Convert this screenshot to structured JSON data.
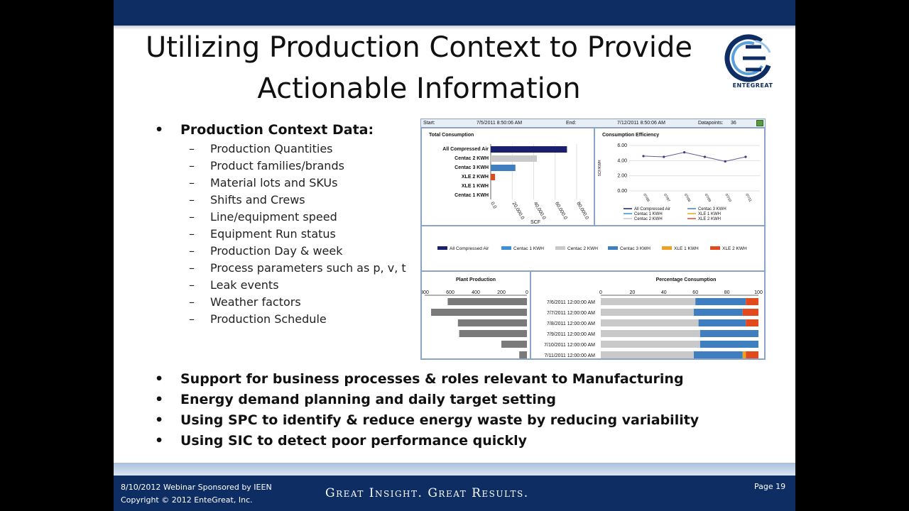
{
  "slide": {
    "title_line1": "Utilizing Production Context to Provide",
    "title_line2": "Actionable Information",
    "logo_text": "ENTEGREAT",
    "top_bullet": {
      "label": "Production Context Data:",
      "items": [
        "Production Quantities",
        "Product families/brands",
        "Material lots and SKUs",
        "Shifts and Crews",
        "Line/equipment speed",
        "Equipment Run status",
        "Production Day & week",
        "Process parameters such as p, v, t",
        "Leak events",
        "Weather factors",
        "Production Schedule"
      ]
    },
    "bottom_bullets": [
      "Support for business processes & roles relevant to Manufacturing",
      "Energy demand planning and daily target setting",
      "Using SPC to identify & reduce energy waste by reducing variability",
      "Using SIC to detect poor performance quickly"
    ]
  },
  "dashboard": {
    "start_label": "Start:",
    "start_value": "7/5/2011 8:50:06 AM",
    "end_label": "End:",
    "end_value": "7/12/2011 8:50:06 AM",
    "datapoints_label": "Datapoints:",
    "datapoints_value": "36"
  },
  "footer": {
    "date_line": "8/10/2012  Webinar Sponsored by IEEN",
    "copyright": "Copyright © 2012  EnteGreat, Inc.",
    "tagline": "Great Insight. Great Results.",
    "page": "Page 19"
  },
  "colors": {
    "all_compressed_air": "#1a1f6e",
    "centac1": "#3a8fd6",
    "centac2": "#c9c9c9",
    "centac3": "#3f7fbf",
    "xle1": "#f0a020",
    "xle2": "#e04a1c"
  },
  "chart_data": [
    {
      "type": "bar",
      "title": "Total Consumption",
      "orientation": "horizontal",
      "categories": [
        "All Compressed Air",
        "Centac 2 KWH",
        "Centac 3 KWH",
        "XLE 2 KWH",
        "XLE 1 KWH",
        "Centac 1 KWH"
      ],
      "values": [
        71000,
        43000,
        23000,
        4000,
        0,
        0
      ],
      "xlabel": "SCF",
      "xticks": [
        "0.0",
        "20,000.0",
        "40,000.0",
        "60,000.0",
        "80,000.0"
      ],
      "xlim": [
        0,
        80000
      ]
    },
    {
      "type": "line",
      "title": "Consumption Efficiency",
      "ylabel": "SCF/KWH",
      "yticks": [
        "0.00",
        "2.00",
        "4.00",
        "6.00"
      ],
      "ylim": [
        0,
        6
      ],
      "x": [
        "07/06",
        "07/07",
        "07/08",
        "07/09",
        "07/10",
        "07/11"
      ],
      "series": [
        {
          "name": "All Compressed Air",
          "values": [
            4.6,
            4.5,
            5.1,
            4.5,
            3.9,
            4.5
          ]
        }
      ],
      "legend": [
        "All Compressed Air",
        "Centac 3 KWH",
        "Centac 1 KWH",
        "XLE 1 KWH",
        "Centac 2 KWH",
        "XLE 2 KWH"
      ]
    },
    {
      "type": "legend",
      "entries": [
        "All Compressed Air",
        "Centac 1 KWH",
        "Centac 2 KWH",
        "Centac 3 KWH",
        "XLE 1 KWH",
        "XLE 2 KWH"
      ]
    },
    {
      "type": "bar",
      "title": "Plant Production",
      "orientation": "horizontal-reversed",
      "categories": [
        "7/6/2011 12:00:00 AM",
        "7/7/2011 12:00:00 AM",
        "7/8/2011 12:00:00 AM",
        "7/9/2011 12:00:00 AM",
        "7/10/2011 12:00:00 AM",
        "7/11/2011 12:00:00 AM"
      ],
      "values": [
        620,
        750,
        540,
        530,
        200,
        60
      ],
      "xticks": [
        "800",
        "600",
        "400",
        "200",
        "0"
      ],
      "xlim": [
        0,
        800
      ]
    },
    {
      "type": "bar",
      "title": "Percentage Consumption",
      "stacked": true,
      "orientation": "horizontal",
      "categories": [
        "7/6/2011 12:00:00 AM",
        "7/7/2011 12:00:00 AM",
        "7/8/2011 12:00:00 AM",
        "7/9/2011 12:00:00 AM",
        "7/10/2011 12:00:00 AM",
        "7/11/2011 12:00:00 AM"
      ],
      "xticks": [
        "0",
        "20",
        "40",
        "60",
        "80",
        "100"
      ],
      "xlim": [
        0,
        100
      ],
      "series": [
        {
          "name": "Centac 2 KWH",
          "values": [
            60,
            59,
            62,
            63,
            63,
            59
          ]
        },
        {
          "name": "Centac 3 KWH",
          "values": [
            32,
            31,
            30,
            37,
            37,
            31
          ]
        },
        {
          "name": "XLE 1 KWH",
          "values": [
            0,
            0,
            0,
            0,
            0,
            2
          ]
        },
        {
          "name": "XLE 2 KWH",
          "values": [
            8,
            10,
            8,
            0,
            0,
            8
          ]
        }
      ]
    }
  ]
}
